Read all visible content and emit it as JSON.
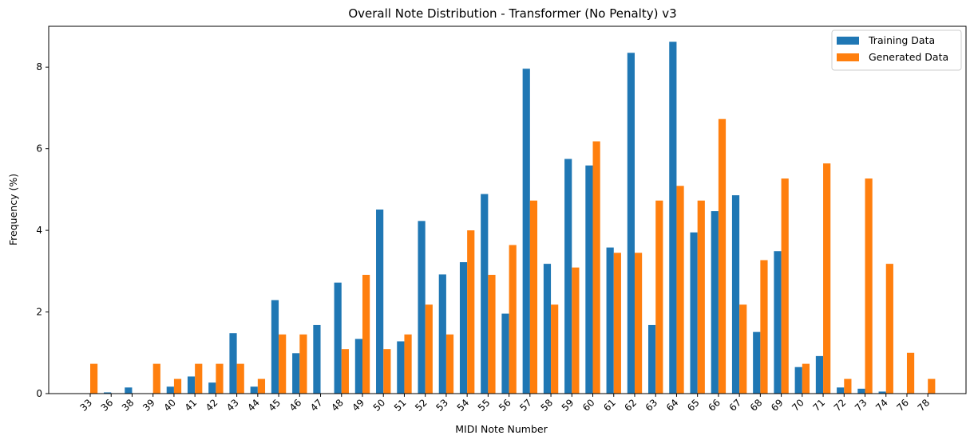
{
  "chart_data": {
    "type": "bar",
    "title": "Overall Note Distribution - Transformer (No Penalty) v3",
    "xlabel": "MIDI Note Number",
    "ylabel": "Frequency (%)",
    "ylim": [
      0,
      9
    ],
    "yticks": [
      0,
      2,
      4,
      6,
      8
    ],
    "grid": false,
    "legend_position": "top-right",
    "categories": [
      "33",
      "36",
      "38",
      "39",
      "40",
      "41",
      "42",
      "43",
      "44",
      "45",
      "46",
      "47",
      "48",
      "49",
      "50",
      "51",
      "52",
      "53",
      "54",
      "55",
      "56",
      "57",
      "58",
      "59",
      "60",
      "61",
      "62",
      "63",
      "64",
      "65",
      "66",
      "67",
      "68",
      "69",
      "70",
      "71",
      "72",
      "73",
      "74",
      "76",
      "78"
    ],
    "series": [
      {
        "name": "Training Data",
        "color": "#1f77b4",
        "values": [
          0,
          0.03,
          0.15,
          0,
          0.17,
          0.42,
          0.27,
          1.48,
          0.17,
          2.29,
          0.99,
          1.68,
          2.72,
          1.34,
          4.51,
          1.28,
          4.23,
          2.92,
          3.22,
          4.89,
          1.96,
          7.96,
          3.18,
          5.75,
          5.59,
          3.58,
          8.35,
          1.68,
          8.62,
          3.95,
          4.47,
          4.86,
          1.51,
          3.49,
          0.65,
          0.92,
          0.15,
          0.12,
          0.05,
          0,
          0
        ]
      },
      {
        "name": "Generated Data",
        "color": "#ff7f0e",
        "values": [
          0.73,
          0,
          0,
          0.73,
          0.36,
          0.73,
          0.73,
          0.73,
          0.36,
          1.45,
          1.45,
          0,
          1.09,
          2.91,
          1.09,
          1.45,
          2.18,
          1.45,
          4.0,
          2.91,
          3.64,
          4.73,
          2.18,
          3.09,
          6.18,
          3.45,
          3.45,
          4.73,
          5.09,
          4.73,
          6.73,
          2.18,
          3.27,
          5.27,
          0.73,
          5.64,
          0.36,
          5.27,
          3.18,
          1.0,
          0.36
        ]
      }
    ]
  }
}
